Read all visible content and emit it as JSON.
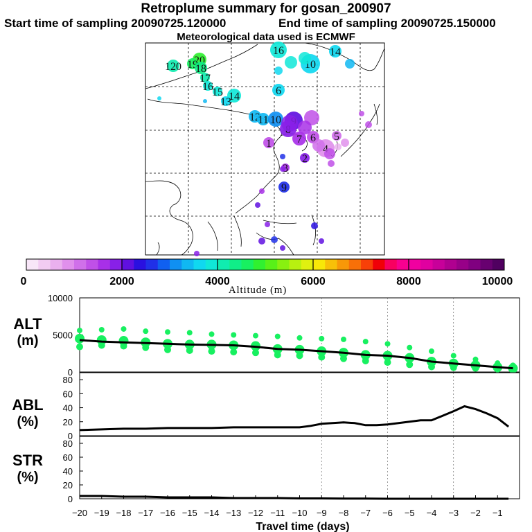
{
  "header": {
    "title": "Retroplume summary for gosan_200907",
    "start": "Start time of sampling 20090725.120000",
    "end": "End time of sampling 20090725.150000",
    "met": "Meteorological data used is ECMWF"
  },
  "colorbar": {
    "label": "Altitude (m)",
    "ticks": [
      "0",
      "2000",
      "4000",
      "6000",
      "8000",
      "10000"
    ],
    "colors": [
      "#f8e6f8",
      "#f2ccf2",
      "#eab0ee",
      "#e090ec",
      "#d070ea",
      "#c050e8",
      "#a830e8",
      "#8820e8",
      "#6010e0",
      "#2a10e0",
      "#2030e8",
      "#1060f0",
      "#1090f2",
      "#10b8f2",
      "#10d8f0",
      "#10e8d8",
      "#10ecb0",
      "#10ee88",
      "#18f060",
      "#30f030",
      "#58f018",
      "#88f010",
      "#b8f010",
      "#e0f010",
      "#f8e808",
      "#f8c008",
      "#f89808",
      "#f87008",
      "#f84008",
      "#f00008",
      "#f80060",
      "#f80090",
      "#f000a0",
      "#e000a0",
      "#c8009a",
      "#b00090",
      "#980088",
      "#800080",
      "#680070",
      "#500060"
    ]
  },
  "map": {
    "plume_points": [
      {
        "label": "20",
        "color": "#30f030"
      },
      {
        "label": "19",
        "color": "#18f060"
      },
      {
        "label": "18",
        "color": "#10ee88"
      },
      {
        "label": "120",
        "color": "#10ecb0"
      },
      {
        "label": "17",
        "color": "#10ecb0"
      },
      {
        "label": "16",
        "color": "#10e8d8"
      },
      {
        "label": "15",
        "color": "#10e8d8"
      },
      {
        "label": "14",
        "color": "#10e8d8"
      },
      {
        "label": "13",
        "color": "#10d8f0"
      },
      {
        "label": "12",
        "color": "#10b8f2"
      },
      {
        "label": "11",
        "color": "#10b8f2"
      },
      {
        "label": "10",
        "color": "#1090f2"
      },
      {
        "label": "9",
        "color": "#6010e0"
      },
      {
        "label": "8",
        "color": "#8820e8"
      },
      {
        "label": "7",
        "color": "#a830e8"
      },
      {
        "label": "6",
        "color": "#c050e8"
      },
      {
        "label": "5",
        "color": "#d070ea"
      },
      {
        "label": "4",
        "color": "#e090ec"
      },
      {
        "label": "16",
        "color": "#10e8d8"
      },
      {
        "label": "10",
        "color": "#10d8f0"
      },
      {
        "label": "14",
        "color": "#10d8f0"
      },
      {
        "label": "6",
        "color": "#10d8f0"
      },
      {
        "label": "1",
        "color": "#c050e8"
      },
      {
        "label": "2",
        "color": "#8820e8"
      },
      {
        "label": "3",
        "color": "#a830e8"
      },
      {
        "label": "9",
        "color": "#2030e8"
      }
    ]
  },
  "chart_data": [
    {
      "type": "line",
      "title": "ALT",
      "ylabel_line1": "ALT",
      "ylabel_line2": "(m)",
      "xlim": [
        -20,
        0
      ],
      "ylim": [
        0,
        10000
      ],
      "yticks": [
        "10000",
        "5000",
        "0"
      ],
      "x": [
        -20,
        -19,
        -18,
        -17,
        -16,
        -15,
        -14,
        -13,
        -12,
        -11,
        -10,
        -9,
        -8,
        -7,
        -6,
        -5,
        -4,
        -3,
        -2,
        -1,
        -0.3
      ],
      "values": [
        4300,
        4100,
        4000,
        3900,
        3800,
        3700,
        3650,
        3600,
        3400,
        3100,
        3000,
        2800,
        2600,
        2300,
        2200,
        1900,
        1400,
        1150,
        900,
        650,
        500
      ],
      "spread": [
        {
          "x": -20,
          "y": [
            5600,
            4500,
            3400
          ]
        },
        {
          "x": -19,
          "y": [
            5700,
            4300,
            3600
          ]
        },
        {
          "x": -18,
          "y": [
            5800,
            4200,
            3500
          ]
        },
        {
          "x": -17,
          "y": [
            5500,
            4000,
            3300
          ]
        },
        {
          "x": -16,
          "y": [
            5400,
            3800,
            3000
          ]
        },
        {
          "x": -15,
          "y": [
            5300,
            3700,
            2900
          ]
        },
        {
          "x": -14,
          "y": [
            5100,
            3700,
            2800
          ]
        },
        {
          "x": -13,
          "y": [
            5000,
            3600,
            2700
          ]
        },
        {
          "x": -12,
          "y": [
            4900,
            3500,
            2600
          ]
        },
        {
          "x": -11,
          "y": [
            4800,
            3100,
            2300
          ]
        },
        {
          "x": -10,
          "y": [
            4600,
            3000,
            2200
          ]
        },
        {
          "x": -9,
          "y": [
            4500,
            2800,
            2000
          ]
        },
        {
          "x": -8,
          "y": [
            4400,
            2600,
            1800
          ]
        },
        {
          "x": -7,
          "y": [
            4100,
            2300,
            1500
          ]
        },
        {
          "x": -6,
          "y": [
            3800,
            2200,
            1300
          ]
        },
        {
          "x": -5,
          "y": [
            3300,
            1900,
            1000
          ]
        },
        {
          "x": -4,
          "y": [
            2800,
            1400,
            700
          ]
        },
        {
          "x": -3,
          "y": [
            2200,
            1150,
            600
          ]
        },
        {
          "x": -2,
          "y": [
            1700,
            900,
            500
          ]
        },
        {
          "x": -1,
          "y": [
            1200,
            650,
            400
          ]
        },
        {
          "x": -0.3,
          "y": [
            900,
            500,
            300
          ]
        }
      ]
    },
    {
      "type": "line",
      "title": "ABL",
      "ylabel_line1": "ABL",
      "ylabel_line2": "(%)",
      "xlim": [
        -20,
        0
      ],
      "ylim": [
        0,
        90
      ],
      "yticks": [
        "80",
        "60",
        "40",
        "20",
        "0"
      ],
      "x": [
        -20,
        -19,
        -18,
        -17,
        -16,
        -15,
        -14,
        -13,
        -12,
        -11,
        -10,
        -9.5,
        -9,
        -8,
        -7.5,
        -7,
        -6.5,
        -6,
        -5,
        -4.5,
        -4,
        -3,
        -2.5,
        -2,
        -1.5,
        -1,
        -0.5
      ],
      "values": [
        8,
        9,
        10,
        10,
        11,
        11,
        11,
        12,
        12,
        12,
        12,
        14,
        17,
        19,
        18,
        15,
        15,
        16,
        20,
        22,
        22,
        35,
        42,
        38,
        32,
        25,
        13
      ]
    },
    {
      "type": "line",
      "title": "STR",
      "ylabel_line1": "STR",
      "ylabel_line2": "(%)",
      "xlim": [
        -20,
        0
      ],
      "ylim": [
        0,
        90
      ],
      "yticks": [
        "80",
        "60",
        "40",
        "20",
        "0"
      ],
      "x": [
        -20,
        -19,
        -18,
        -17,
        -16,
        -15,
        -14,
        -13,
        -12,
        -11,
        -10,
        -9,
        -8,
        -7,
        -6,
        -5,
        -4,
        -3,
        -2,
        -1,
        -0.5
      ],
      "values": [
        4,
        4,
        3,
        3,
        2,
        2,
        2,
        1,
        1,
        1,
        0.5,
        0.5,
        0.3,
        0.2,
        0,
        0,
        0,
        0,
        0,
        0,
        0
      ],
      "xlabel": "Travel time (days)",
      "xticks": [
        "−20",
        "−19",
        "−18",
        "−17",
        "−16",
        "−15",
        "−14",
        "−13",
        "−12",
        "−11",
        "−10",
        "−9",
        "−8",
        "−7",
        "−6",
        "−5",
        "−4",
        "−3",
        "−2",
        "−1"
      ]
    }
  ]
}
